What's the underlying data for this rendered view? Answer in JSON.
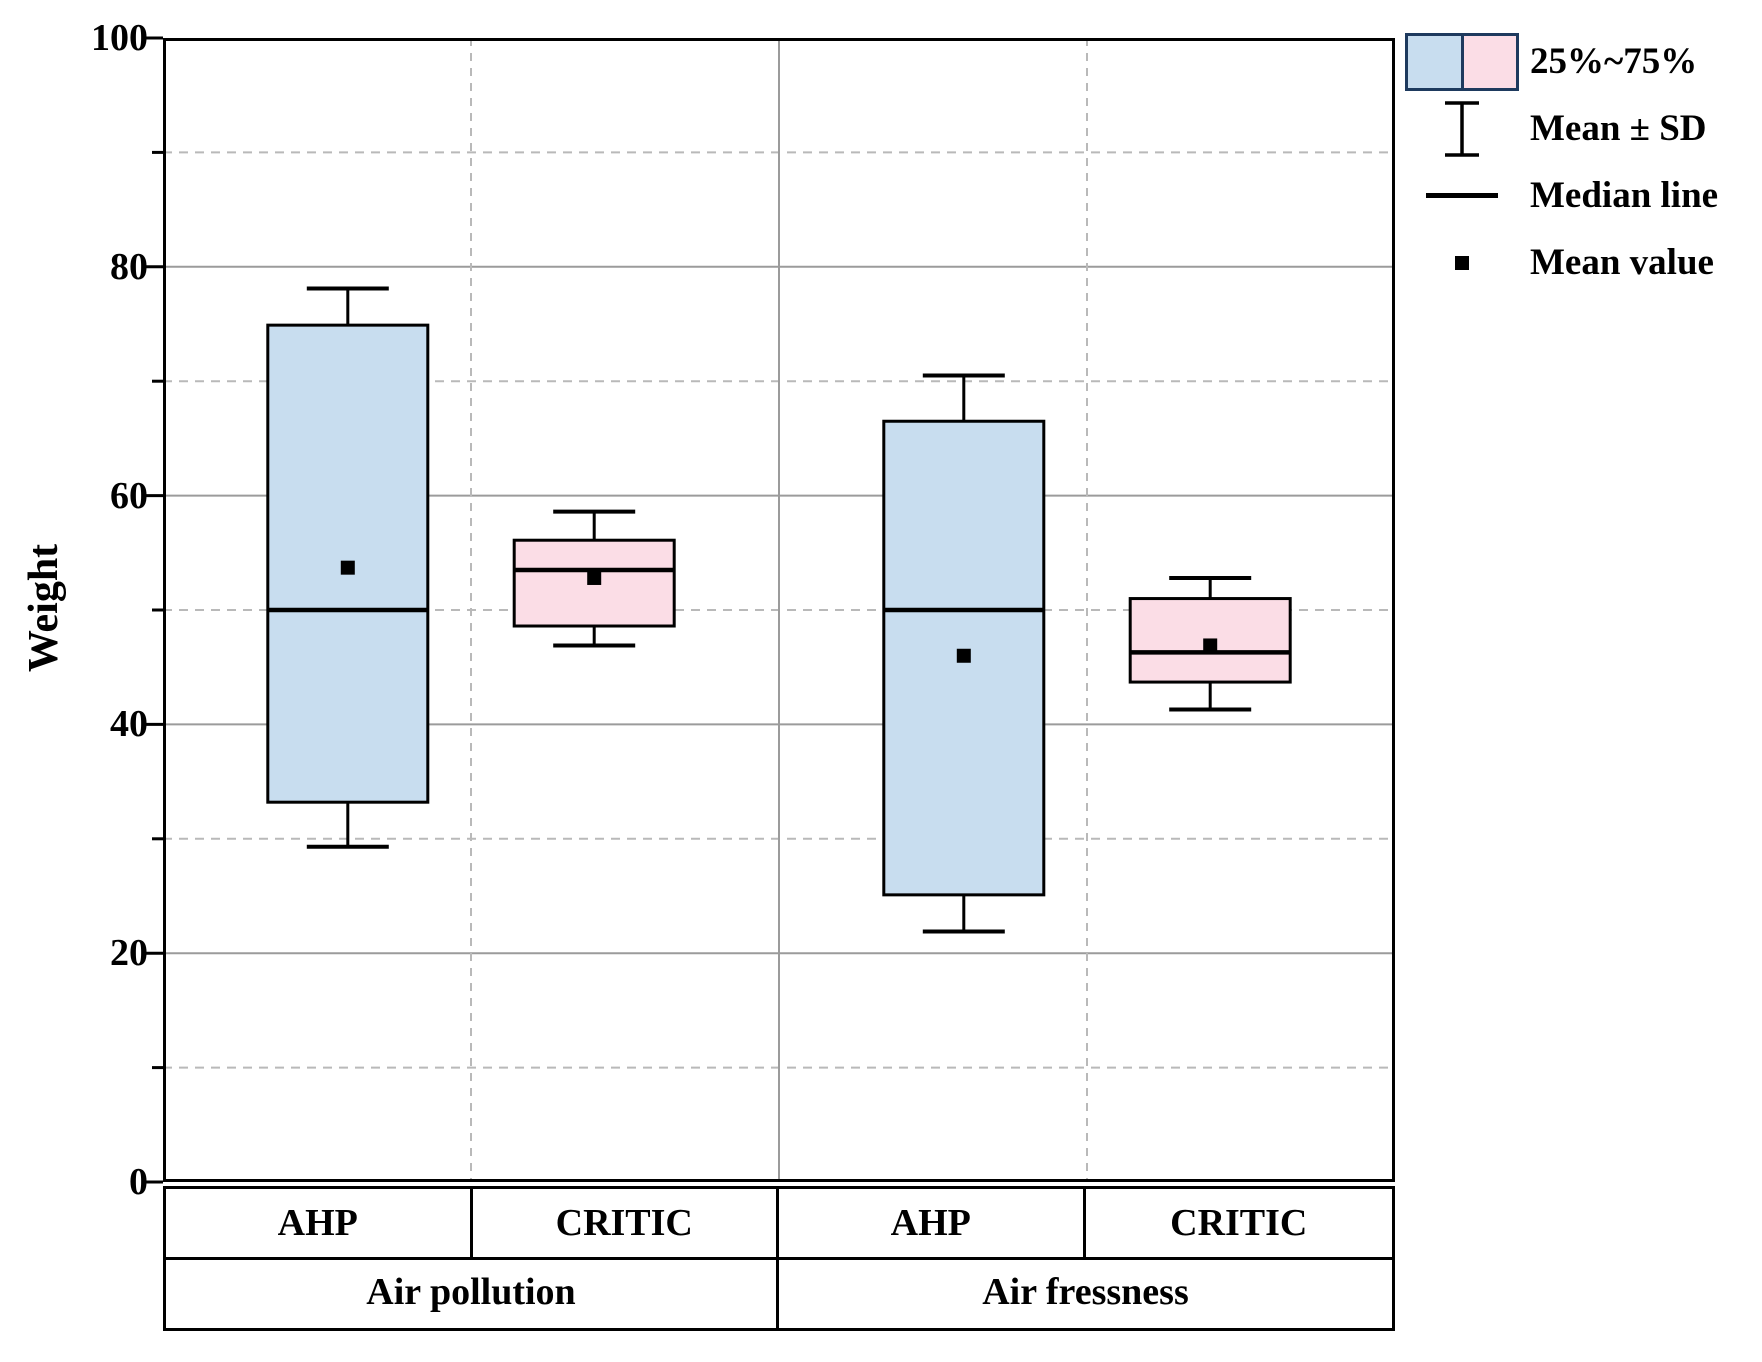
{
  "figure": {
    "background": "#ffffff"
  },
  "chart_data": {
    "type": "box",
    "title": "",
    "xlabel": "",
    "ylabel": "Weight",
    "ylim": [
      0,
      100
    ],
    "y_major_ticks": [
      0,
      20,
      40,
      60,
      80,
      100
    ],
    "y_minor_ticks": [
      10,
      30,
      50,
      70,
      90
    ],
    "grid": {
      "h_solid": [
        20,
        40,
        60,
        80
      ],
      "h_dashed": [
        10,
        30,
        50,
        70,
        90
      ],
      "v_solid_frac": [
        0.5
      ],
      "v_dashed_frac": [
        0.25,
        0.75
      ]
    },
    "groups": [
      "Air pollution",
      "Air fressness"
    ],
    "series_labels": [
      "AHP",
      "CRITIC",
      "AHP",
      "CRITIC"
    ],
    "boxes": [
      {
        "group": "Air pollution",
        "method": "AHP",
        "x_frac": 0.15,
        "fill_key": "ahp_fill",
        "whisker_low": 29.3,
        "q1": 33.2,
        "median": 50.0,
        "mean": 53.7,
        "q3": 74.9,
        "whisker_high": 78.1
      },
      {
        "group": "Air pollution",
        "method": "CRITIC",
        "x_frac": 0.35,
        "fill_key": "critic_fill",
        "whisker_low": 46.9,
        "q1": 48.6,
        "median": 53.5,
        "mean": 52.8,
        "q3": 56.1,
        "whisker_high": 58.6
      },
      {
        "group": "Air fressness",
        "method": "AHP",
        "x_frac": 0.65,
        "fill_key": "ahp_fill",
        "whisker_low": 21.9,
        "q1": 25.1,
        "median": 50.0,
        "mean": 46.0,
        "q3": 66.5,
        "whisker_high": 70.5
      },
      {
        "group": "Air fressness",
        "method": "CRITIC",
        "x_frac": 0.85,
        "fill_key": "critic_fill",
        "whisker_low": 41.3,
        "q1": 43.7,
        "median": 46.3,
        "mean": 46.9,
        "q3": 51.0,
        "whisker_high": 52.8
      }
    ],
    "legend": [
      {
        "icon": "quartile-range-swatch",
        "label": "25%~75%"
      },
      {
        "icon": "error-bar",
        "label": "Mean ± SD"
      },
      {
        "icon": "median-line",
        "label": "Median line"
      },
      {
        "icon": "mean-square",
        "label": "Mean value"
      }
    ],
    "legend_position": "top-right-outside",
    "colors": {
      "ahp_fill": "#c8ddef",
      "critic_fill": "#fbdde6",
      "box_stroke": "#000000",
      "median_stroke": "#000000",
      "mean_marker": "#000000",
      "grid_solid": "#9b9b9b",
      "grid_dashed": "#b9b9b9",
      "axis": "#000000",
      "legend_swatch_border": "#1e3a5e"
    }
  }
}
